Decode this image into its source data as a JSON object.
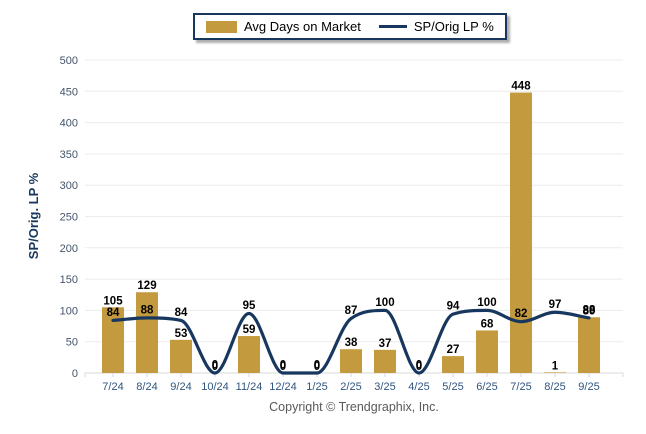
{
  "chart_data": {
    "type": "bar+line",
    "title": "",
    "categories": [
      "7/24",
      "8/24",
      "9/24",
      "10/24",
      "11/24",
      "12/24",
      "1/25",
      "2/25",
      "3/25",
      "4/25",
      "5/25",
      "6/25",
      "7/25",
      "8/25",
      "9/25"
    ],
    "series": [
      {
        "name": "Avg Days on Market",
        "type": "bar",
        "values": [
          105,
          129,
          53,
          0,
          59,
          0,
          0,
          38,
          37,
          0,
          27,
          68,
          448,
          1,
          89
        ]
      },
      {
        "name": "SP/Orig LP %",
        "type": "line",
        "values": [
          84,
          88,
          84,
          0,
          95,
          0,
          0,
          87,
          100,
          0,
          94,
          100,
          82,
          97,
          88
        ]
      }
    ],
    "xlabel": "",
    "ylabel": "SP/Orig. LP %",
    "ylim": [
      0,
      500
    ],
    "yticks": [
      0,
      50,
      100,
      150,
      200,
      250,
      300,
      350,
      400,
      450,
      500
    ],
    "grid": "horizontal",
    "legend_position": "top-center",
    "data_labels": true
  },
  "colors": {
    "bar": "#C49A3E",
    "line": "#17375E",
    "x_tick_label": "#2F5580",
    "y_tick_label": "#44546A",
    "axis_title": "#17375E",
    "grid": "#ECECEC",
    "axis": "#D9D9D9",
    "data_label": "#000000",
    "legend_border": "#17375E",
    "copyright_text": "#595959"
  },
  "footer": {
    "copyright": "Copyright © Trendgraphix, Inc."
  }
}
